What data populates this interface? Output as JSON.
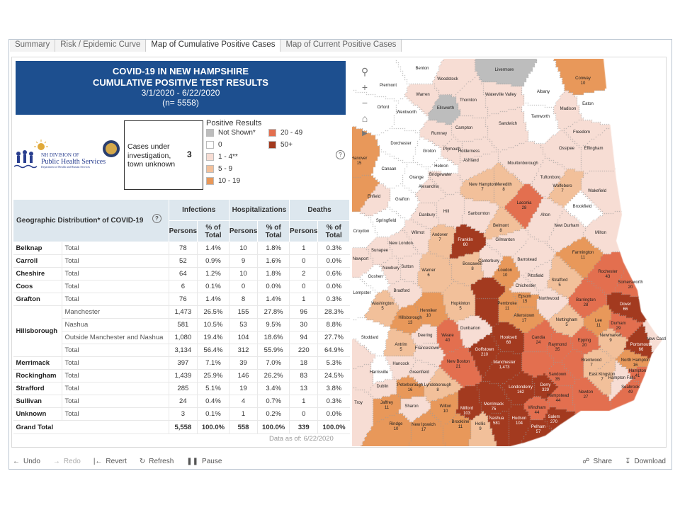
{
  "tabs": [
    "Summary",
    "Risk / Epidemic Curve",
    "Map of Cumulative Positive Cases",
    "Map of Current Positive Cases"
  ],
  "active_tab": 2,
  "banner": {
    "line1": "COVID-19 IN NEW HAMPSHIRE",
    "line2": "CUMULATIVE POSITIVE TEST RESULTS",
    "dates": "3/1/2020 - 6/22/2020",
    "n": "(n= 5558)"
  },
  "logo": {
    "line1": "NH DIVISION OF",
    "line2": "Public Health Services",
    "line3": "Department of Health and Human Services"
  },
  "cases_box": {
    "label": "Cases under investigation, town unknown",
    "value": "3"
  },
  "legend": {
    "title": "Positive Results",
    "items": [
      {
        "label": "Not Shown*",
        "color": "#bdbdbd"
      },
      {
        "label": "0",
        "color": "#ffffff"
      },
      {
        "label": "1 - 4**",
        "color": "#f7ddd4"
      },
      {
        "label": "5 - 9",
        "color": "#f2c09a"
      },
      {
        "label": "10 - 19",
        "color": "#e8985a"
      },
      {
        "label": "20 - 49",
        "color": "#e36f4f"
      },
      {
        "label": "50+",
        "color": "#a33a1f"
      }
    ]
  },
  "help_icon": "?",
  "table": {
    "title": "Geographic Distribution* of COVID-19",
    "groups": [
      "Infections",
      "Hospitalizations",
      "Deaths"
    ],
    "subheaders": [
      "Persons",
      "% of Total",
      "Persons",
      "% of Total",
      "Persons",
      "% of Total"
    ],
    "rows": [
      {
        "county": "Belknap",
        "sub": "Total",
        "v": [
          "78",
          "1.4%",
          "10",
          "1.8%",
          "1",
          "0.3%"
        ]
      },
      {
        "county": "Carroll",
        "sub": "Total",
        "v": [
          "52",
          "0.9%",
          "9",
          "1.6%",
          "0",
          "0.0%"
        ]
      },
      {
        "county": "Cheshire",
        "sub": "Total",
        "v": [
          "64",
          "1.2%",
          "10",
          "1.8%",
          "2",
          "0.6%"
        ]
      },
      {
        "county": "Coos",
        "sub": "Total",
        "v": [
          "6",
          "0.1%",
          "0",
          "0.0%",
          "0",
          "0.0%"
        ]
      },
      {
        "county": "Grafton",
        "sub": "Total",
        "v": [
          "76",
          "1.4%",
          "8",
          "1.4%",
          "1",
          "0.3%"
        ]
      },
      {
        "county": "Hillsborough",
        "sub": "Manchester",
        "v": [
          "1,473",
          "26.5%",
          "155",
          "27.8%",
          "96",
          "28.3%"
        ]
      },
      {
        "county": "",
        "sub": "Nashua",
        "v": [
          "581",
          "10.5%",
          "53",
          "9.5%",
          "30",
          "8.8%"
        ]
      },
      {
        "county": "",
        "sub": "Outside Manchester and Nashua",
        "v": [
          "1,080",
          "19.4%",
          "104",
          "18.6%",
          "94",
          "27.7%"
        ]
      },
      {
        "county": "",
        "sub": "Total",
        "v": [
          "3,134",
          "56.4%",
          "312",
          "55.9%",
          "220",
          "64.9%"
        ]
      },
      {
        "county": "Merrimack",
        "sub": "Total",
        "v": [
          "397",
          "7.1%",
          "39",
          "7.0%",
          "18",
          "5.3%"
        ]
      },
      {
        "county": "Rockingham",
        "sub": "Total",
        "v": [
          "1,439",
          "25.9%",
          "146",
          "26.2%",
          "83",
          "24.5%"
        ]
      },
      {
        "county": "Strafford",
        "sub": "Total",
        "v": [
          "285",
          "5.1%",
          "19",
          "3.4%",
          "13",
          "3.8%"
        ]
      },
      {
        "county": "Sullivan",
        "sub": "Total",
        "v": [
          "24",
          "0.4%",
          "4",
          "0.7%",
          "1",
          "0.3%"
        ]
      },
      {
        "county": "Unknown",
        "sub": "Total",
        "v": [
          "3",
          "0.1%",
          "1",
          "0.2%",
          "0",
          "0.0%"
        ]
      }
    ],
    "grand_total": {
      "label": "Grand Total",
      "v": [
        "5,558",
        "100.0%",
        "558",
        "100.0%",
        "339",
        "100.0%"
      ]
    },
    "as_of": "Data as of: 6/22/2020"
  },
  "map": {
    "towns": [
      {
        "name": "Benton",
        "count": "",
        "bin": "0"
      },
      {
        "name": "Woodstock",
        "count": "",
        "bin": "1-4"
      },
      {
        "name": "Livermore",
        "count": "",
        "bin": "ns"
      },
      {
        "name": "Conway",
        "count": "10",
        "bin": "10-19"
      },
      {
        "name": "Piermont",
        "count": "",
        "bin": "0"
      },
      {
        "name": "Warren",
        "count": "",
        "bin": "1-4"
      },
      {
        "name": "Waterville Valley",
        "count": "",
        "bin": "1-4"
      },
      {
        "name": "Albany",
        "count": "",
        "bin": "0"
      },
      {
        "name": "Orford",
        "count": "",
        "bin": "0"
      },
      {
        "name": "Ellsworth",
        "count": "",
        "bin": "ns"
      },
      {
        "name": "Thornton",
        "count": "",
        "bin": "1-4"
      },
      {
        "name": "Madison",
        "count": "",
        "bin": "1-4"
      },
      {
        "name": "Eaton",
        "count": "",
        "bin": "0"
      },
      {
        "name": "Wentworth",
        "count": "",
        "bin": "0"
      },
      {
        "name": "Campton",
        "count": "",
        "bin": "1-4"
      },
      {
        "name": "Sandwich",
        "count": "",
        "bin": "1-4"
      },
      {
        "name": "Tamworth",
        "count": "",
        "bin": "0"
      },
      {
        "name": "Freedom",
        "count": "",
        "bin": "1-4"
      },
      {
        "name": "Rumney",
        "count": "",
        "bin": "1-4"
      },
      {
        "name": "Dorchester",
        "count": "",
        "bin": "0"
      },
      {
        "name": "Ossipee",
        "count": "",
        "bin": "1-4"
      },
      {
        "name": "Effingham",
        "count": "",
        "bin": "1-4"
      },
      {
        "name": "Groton",
        "count": "",
        "bin": "0"
      },
      {
        "name": "Plymouth",
        "count": "",
        "bin": "1-4"
      },
      {
        "name": "Holderness",
        "count": "",
        "bin": "1-4"
      },
      {
        "name": "Ashland",
        "count": "",
        "bin": "1-4"
      },
      {
        "name": "Moultonborough",
        "count": "",
        "bin": "1-4"
      },
      {
        "name": "Hanover",
        "count": "15",
        "bin": "10-19"
      },
      {
        "name": "Canaan",
        "count": "",
        "bin": "0"
      },
      {
        "name": "Hebron",
        "count": "",
        "bin": "0"
      },
      {
        "name": "Tuftonboro",
        "count": "",
        "bin": "1-4"
      },
      {
        "name": "Orange",
        "count": "",
        "bin": "0"
      },
      {
        "name": "Bridgewater",
        "count": "",
        "bin": "1-4"
      },
      {
        "name": "New Hampton",
        "count": "7",
        "bin": "5-9"
      },
      {
        "name": "Meredith",
        "count": "8",
        "bin": "5-9"
      },
      {
        "name": "Wolfeboro",
        "count": "7",
        "bin": "5-9"
      },
      {
        "name": "Alexandria",
        "count": "",
        "bin": "1-4"
      },
      {
        "name": "Wakefield",
        "count": "",
        "bin": "1-4"
      },
      {
        "name": "Enfield",
        "count": "",
        "bin": "1-4"
      },
      {
        "name": "Grafton",
        "count": "",
        "bin": "0"
      },
      {
        "name": "Laconia",
        "count": "28",
        "bin": "20-49"
      },
      {
        "name": "Brookfield",
        "count": "",
        "bin": "0"
      },
      {
        "name": "Danbury",
        "count": "",
        "bin": "1-4"
      },
      {
        "name": "Hill",
        "count": "",
        "bin": "1-4"
      },
      {
        "name": "Sanbornton",
        "count": "",
        "bin": "1-4"
      },
      {
        "name": "Alton",
        "count": "",
        "bin": "1-4"
      },
      {
        "name": "Springfield",
        "count": "",
        "bin": "0"
      },
      {
        "name": "Belmont",
        "count": "8",
        "bin": "5-9"
      },
      {
        "name": "New Durham",
        "count": "",
        "bin": "1-4"
      },
      {
        "name": "Milton",
        "count": "",
        "bin": "1-4"
      },
      {
        "name": "Croydon",
        "count": "",
        "bin": "0"
      },
      {
        "name": "Wilmot",
        "count": "",
        "bin": "1-4"
      },
      {
        "name": "Andover",
        "count": "7",
        "bin": "5-9"
      },
      {
        "name": "Franklin",
        "count": "60",
        "bin": "50+"
      },
      {
        "name": "Gilmanton",
        "count": "",
        "bin": "1-4"
      },
      {
        "name": "New London",
        "count": "",
        "bin": "1-4"
      },
      {
        "name": "Sunapee",
        "count": "",
        "bin": "1-4"
      },
      {
        "name": "Farmington",
        "count": "11",
        "bin": "10-19"
      },
      {
        "name": "Newport",
        "count": "",
        "bin": "1-4"
      },
      {
        "name": "Barnstead",
        "count": "",
        "bin": "1-4"
      },
      {
        "name": "Rochester",
        "count": "43",
        "bin": "20-49"
      },
      {
        "name": "Boscawen",
        "count": "8",
        "bin": "5-9"
      },
      {
        "name": "Canterbury",
        "count": "",
        "bin": "1-4"
      },
      {
        "name": "Loudon",
        "count": "10",
        "bin": "10-19"
      },
      {
        "name": "Newbury",
        "count": "",
        "bin": "1-4"
      },
      {
        "name": "Sutton",
        "count": "",
        "bin": "1-4"
      },
      {
        "name": "Warner",
        "count": "6",
        "bin": "5-9"
      },
      {
        "name": "Pittsfield",
        "count": "",
        "bin": "1-4"
      },
      {
        "name": "Strafford",
        "count": "5",
        "bin": "5-9"
      },
      {
        "name": "Somersworth",
        "count": "20",
        "bin": "20-49"
      },
      {
        "name": "Goshen",
        "count": "",
        "bin": "0"
      },
      {
        "name": "Chichester",
        "count": "",
        "bin": "1-4"
      },
      {
        "name": "Epsom",
        "count": "15",
        "bin": "10-19"
      },
      {
        "name": "Northwood",
        "count": "",
        "bin": "1-4"
      },
      {
        "name": "Barrington",
        "count": "28",
        "bin": "20-49"
      },
      {
        "name": "Dover",
        "count": "66",
        "bin": "50+"
      },
      {
        "name": "Lempster",
        "count": "",
        "bin": "0"
      },
      {
        "name": "Bradford",
        "count": "",
        "bin": "1-4"
      },
      {
        "name": "Hopkinton",
        "count": "5",
        "bin": "5-9"
      },
      {
        "name": "Henniker",
        "count": "10",
        "bin": "10-19"
      },
      {
        "name": "Washington",
        "count": "5",
        "bin": "5-9"
      },
      {
        "name": "Pembroke",
        "count": "11",
        "bin": "10-19"
      },
      {
        "name": "Allenstown",
        "count": "17",
        "bin": "10-19"
      },
      {
        "name": "Nottingham",
        "count": "5",
        "bin": "5-9"
      },
      {
        "name": "Lee",
        "count": "11",
        "bin": "10-19"
      },
      {
        "name": "Durham",
        "count": "29",
        "bin": "20-49"
      },
      {
        "name": "Hillsborough",
        "count": "13",
        "bin": "10-19"
      },
      {
        "name": "Dunbarton",
        "count": "",
        "bin": "1-4"
      },
      {
        "name": "Newmarket",
        "count": "9",
        "bin": "5-9"
      },
      {
        "name": "Portsmouth",
        "count": "66",
        "bin": "50+"
      },
      {
        "name": "New Castle",
        "count": "",
        "bin": "1-4"
      },
      {
        "name": "Weare",
        "count": "40",
        "bin": "20-49"
      },
      {
        "name": "Deering",
        "count": "",
        "bin": "1-4"
      },
      {
        "name": "Antrim",
        "count": "5",
        "bin": "5-9"
      },
      {
        "name": "Stoddard",
        "count": "",
        "bin": "0"
      },
      {
        "name": "Francestown",
        "count": "",
        "bin": "1-4"
      },
      {
        "name": "Hooksett",
        "count": "68",
        "bin": "50+"
      },
      {
        "name": "Candia",
        "count": "24",
        "bin": "20-49"
      },
      {
        "name": "Raymond",
        "count": "35",
        "bin": "20-49"
      },
      {
        "name": "Epping",
        "count": "20",
        "bin": "20-49"
      },
      {
        "name": "Goffstown",
        "count": "210",
        "bin": "50+"
      },
      {
        "name": "North Hampton",
        "count": "16",
        "bin": "10-19"
      },
      {
        "name": "Manchester",
        "count": "1,473",
        "bin": "50+"
      },
      {
        "name": "Brentwood",
        "count": "7",
        "bin": "5-9"
      },
      {
        "name": "New Boston",
        "count": "21",
        "bin": "20-49"
      },
      {
        "name": "Hancock",
        "count": "",
        "bin": "1-4"
      },
      {
        "name": "Harrisville",
        "count": "",
        "bin": "0"
      },
      {
        "name": "Greenfield",
        "count": "",
        "bin": "1-4"
      },
      {
        "name": "Sandown",
        "count": "35",
        "bin": "20-49"
      },
      {
        "name": "East Kingston",
        "count": "7",
        "bin": "5-9"
      },
      {
        "name": "Hampton Falls",
        "count": "",
        "bin": "1-4"
      },
      {
        "name": "Hampton",
        "count": "41",
        "bin": "20-49"
      },
      {
        "name": "Dublin",
        "count": "",
        "bin": "1-4"
      },
      {
        "name": "Peterborough",
        "count": "16",
        "bin": "10-19"
      },
      {
        "name": "Lyndeborough",
        "count": "8",
        "bin": "5-9"
      },
      {
        "name": "Londonderry",
        "count": "162",
        "bin": "50+"
      },
      {
        "name": "Derry",
        "count": "329",
        "bin": "50+"
      },
      {
        "name": "Hampstead",
        "count": "44",
        "bin": "20-49"
      },
      {
        "name": "Newton",
        "count": "27",
        "bin": "20-49"
      },
      {
        "name": "Seabrook",
        "count": "49",
        "bin": "20-49"
      },
      {
        "name": "Jaffrey",
        "count": "11",
        "bin": "10-19"
      },
      {
        "name": "Sharon",
        "count": "",
        "bin": "1-4"
      },
      {
        "name": "Wilton",
        "count": "10",
        "bin": "10-19"
      },
      {
        "name": "Milford",
        "count": "103",
        "bin": "50+"
      },
      {
        "name": "Merrimack",
        "count": "75",
        "bin": "50+"
      },
      {
        "name": "Windham",
        "count": "44",
        "bin": "20-49"
      },
      {
        "name": "Salem",
        "count": "270",
        "bin": "50+"
      },
      {
        "name": "Hudson",
        "count": "104",
        "bin": "50+"
      },
      {
        "name": "Nashua",
        "count": "581",
        "bin": "50+"
      },
      {
        "name": "Pelham",
        "count": "57",
        "bin": "50+"
      },
      {
        "name": "Troy",
        "count": "",
        "bin": "1-4"
      },
      {
        "name": "Rindge",
        "count": "10",
        "bin": "10-19"
      },
      {
        "name": "New Ipswich",
        "count": "17",
        "bin": "10-19"
      },
      {
        "name": "Brookline",
        "count": "11",
        "bin": "10-19"
      },
      {
        "name": "Hollis",
        "count": "9",
        "bin": "5-9"
      }
    ]
  },
  "map_controls": [
    "search",
    "zoom-in",
    "zoom-out",
    "home",
    "play"
  ],
  "toolbar": {
    "undo": "Undo",
    "redo": "Redo",
    "revert": "Revert",
    "refresh": "Refresh",
    "pause": "Pause",
    "share": "Share",
    "download": "Download"
  }
}
